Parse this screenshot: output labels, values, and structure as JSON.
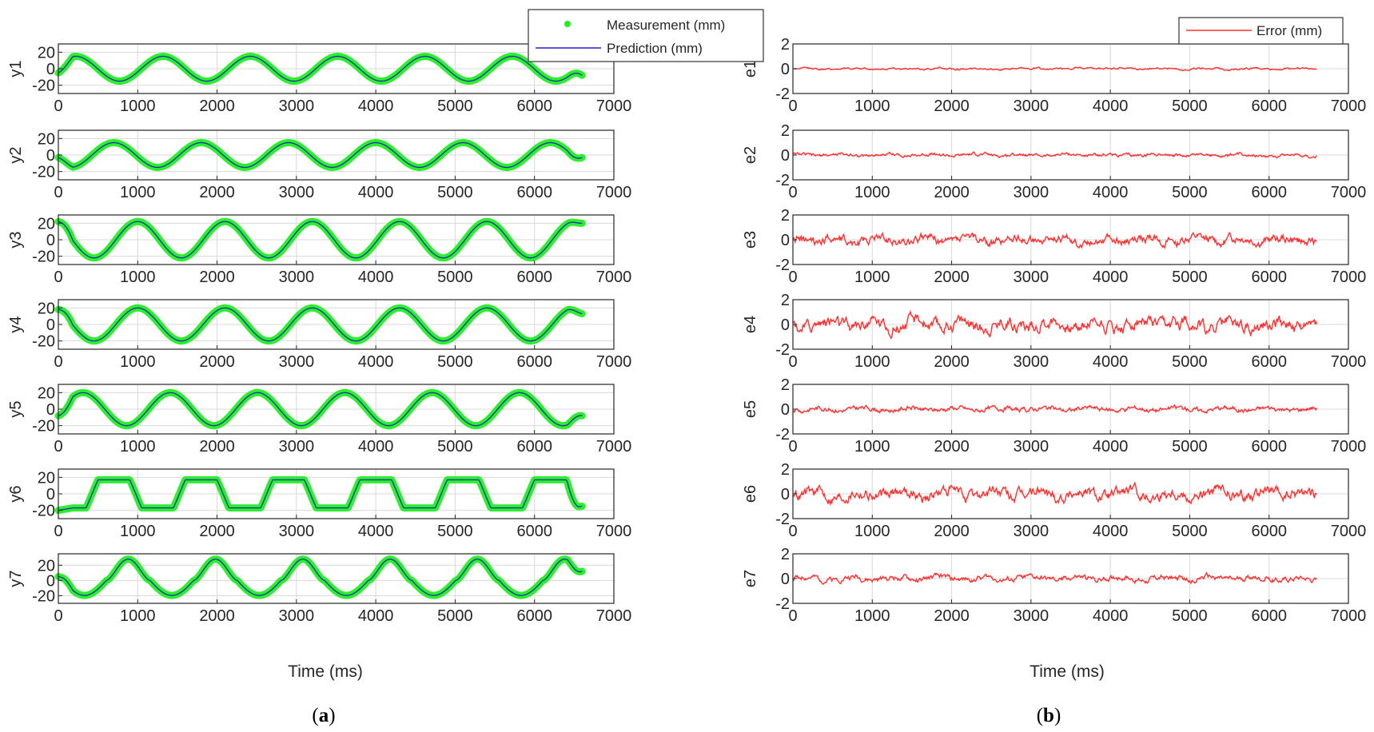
{
  "chart_data": [
    {
      "panel": "a",
      "type": "line",
      "caption": {
        "open": "(",
        "letter": "a",
        "close": ")"
      },
      "xlabel": "Time (ms)",
      "xlim": [
        0,
        7000
      ],
      "xticks": [
        0,
        1000,
        2000,
        3000,
        4000,
        5000,
        6000,
        7000
      ],
      "x_end": 6600,
      "legend": [
        {
          "label": "Measurement (mm)",
          "style": "dots",
          "color": "#22ee22"
        },
        {
          "label": "Prediction (mm)",
          "style": "line",
          "color": "#2222cc"
        }
      ],
      "subplots": [
        {
          "ylabel": "y1",
          "ylim": [
            -30,
            30
          ],
          "yticks": [
            -20,
            0,
            20
          ],
          "wave": "sine",
          "period": 1100,
          "phase": 220,
          "amp": 15,
          "y0": -5,
          "y_end": -8
        },
        {
          "ylabel": "y2",
          "ylim": [
            -30,
            30
          ],
          "yticks": [
            -20,
            0,
            20
          ],
          "wave": "sine",
          "period": 1100,
          "phase": 700,
          "amp": 15,
          "y0": -3,
          "y_end": -3
        },
        {
          "ylabel": "y3",
          "ylim": [
            -30,
            30
          ],
          "yticks": [
            -20,
            0,
            20
          ],
          "wave": "sine",
          "period": 1100,
          "phase": 1000,
          "amp": 22,
          "y0": 22,
          "y_end": 20
        },
        {
          "ylabel": "y4",
          "ylim": [
            -30,
            30
          ],
          "yticks": [
            -20,
            0,
            20
          ],
          "wave": "sine",
          "period": 1100,
          "phase": 1000,
          "amp": 20,
          "y0": 18,
          "y_end": 13
        },
        {
          "ylabel": "y5",
          "ylim": [
            -30,
            30
          ],
          "yticks": [
            -20,
            0,
            20
          ],
          "wave": "sine",
          "period": 1100,
          "phase": 310,
          "amp": 20,
          "y0": -8,
          "y_end": -8
        },
        {
          "ylabel": "y6",
          "ylim": [
            -30,
            30
          ],
          "yticks": [
            -20,
            0,
            20
          ],
          "wave": "plateau",
          "period": 1100,
          "phase": 700,
          "amp": 17,
          "y0": -20,
          "y_end": -15
        },
        {
          "ylabel": "y7",
          "ylim": [
            -30,
            35
          ],
          "yticks": [
            -20,
            0,
            20
          ],
          "wave": "peaky",
          "period": 1100,
          "phase": 880,
          "amp": 28,
          "y0": 5,
          "y_end": 12
        }
      ]
    },
    {
      "panel": "b",
      "type": "line",
      "caption": {
        "open": "(",
        "letter": "b",
        "close": ")"
      },
      "xlabel": "Time (ms)",
      "xlim": [
        0,
        7000
      ],
      "xticks": [
        0,
        1000,
        2000,
        3000,
        4000,
        5000,
        6000,
        7000
      ],
      "x_end": 6600,
      "legend": [
        {
          "label": "Error (mm)",
          "style": "line",
          "color": "#ff3030"
        }
      ],
      "subplots": [
        {
          "ylabel": "e1",
          "ylim": [
            -2,
            2
          ],
          "yticks": [
            -2,
            0,
            2
          ],
          "noise_amp": 0.12
        },
        {
          "ylabel": "e2",
          "ylim": [
            -2,
            2
          ],
          "yticks": [
            -2,
            0,
            2
          ],
          "noise_amp": 0.2
        },
        {
          "ylabel": "e3",
          "ylim": [
            -2,
            2
          ],
          "yticks": [
            -2,
            0,
            2
          ],
          "noise_amp": 0.55
        },
        {
          "ylabel": "e4",
          "ylim": [
            -2,
            2
          ],
          "yticks": [
            -2,
            0,
            2
          ],
          "noise_amp": 0.8
        },
        {
          "ylabel": "e5",
          "ylim": [
            -2,
            2
          ],
          "yticks": [
            -2,
            0,
            2
          ],
          "noise_amp": 0.3
        },
        {
          "ylabel": "e6",
          "ylim": [
            -2,
            2
          ],
          "yticks": [
            -2,
            0,
            2
          ],
          "noise_amp": 0.7
        },
        {
          "ylabel": "e7",
          "ylim": [
            -2,
            2
          ],
          "yticks": [
            -2,
            0,
            2
          ],
          "noise_amp": 0.35
        }
      ]
    }
  ]
}
